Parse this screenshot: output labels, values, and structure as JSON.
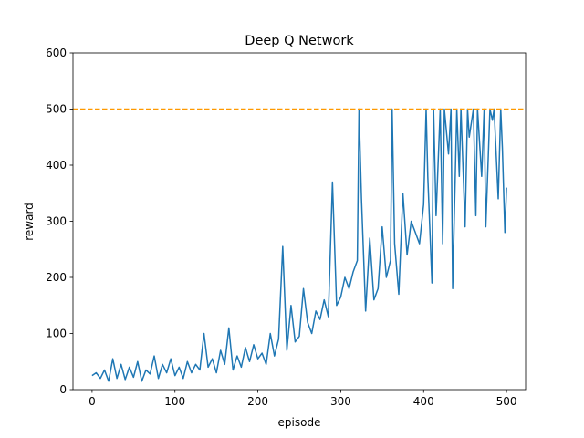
{
  "chart_data": {
    "type": "line",
    "title": "Deep Q Network",
    "xlabel": "episode",
    "ylabel": "reward",
    "xlim": [
      -23,
      523
    ],
    "ylim": [
      0,
      600
    ],
    "xticks": [
      0,
      100,
      200,
      300,
      400,
      500
    ],
    "yticks": [
      0,
      100,
      200,
      300,
      400,
      500,
      600
    ],
    "grid": false,
    "series": [
      {
        "color": "#1f77b4",
        "x": [
          0,
          5,
          10,
          15,
          20,
          25,
          30,
          35,
          40,
          45,
          50,
          55,
          60,
          65,
          70,
          75,
          80,
          85,
          90,
          95,
          100,
          105,
          110,
          115,
          120,
          125,
          130,
          135,
          140,
          145,
          150,
          155,
          160,
          165,
          170,
          175,
          180,
          185,
          190,
          195,
          200,
          205,
          210,
          215,
          220,
          225,
          230,
          235,
          240,
          245,
          250,
          255,
          260,
          265,
          270,
          275,
          280,
          285,
          290,
          295,
          300,
          305,
          310,
          315,
          320,
          322,
          325,
          330,
          335,
          340,
          345,
          350,
          355,
          360,
          362,
          365,
          370,
          375,
          380,
          385,
          390,
          395,
          400,
          403,
          405,
          410,
          412,
          415,
          420,
          423,
          425,
          430,
          433,
          435,
          440,
          443,
          445,
          450,
          453,
          455,
          460,
          463,
          465,
          470,
          473,
          475,
          480,
          483,
          485,
          490,
          493,
          495,
          498,
          500
        ],
        "y": [
          25,
          30,
          20,
          35,
          15,
          55,
          20,
          45,
          18,
          40,
          22,
          50,
          15,
          35,
          28,
          60,
          20,
          45,
          30,
          55,
          25,
          40,
          20,
          50,
          30,
          45,
          35,
          100,
          40,
          55,
          30,
          70,
          45,
          110,
          35,
          60,
          40,
          75,
          50,
          80,
          55,
          65,
          45,
          100,
          60,
          90,
          255,
          70,
          150,
          85,
          95,
          180,
          120,
          100,
          140,
          125,
          160,
          130,
          370,
          150,
          165,
          200,
          180,
          210,
          230,
          500,
          340,
          140,
          270,
          160,
          180,
          290,
          200,
          230,
          500,
          260,
          170,
          350,
          240,
          300,
          280,
          260,
          330,
          500,
          380,
          190,
          500,
          310,
          500,
          260,
          500,
          420,
          500,
          180,
          500,
          380,
          500,
          290,
          500,
          450,
          500,
          310,
          500,
          380,
          500,
          290,
          500,
          480,
          500,
          340,
          500,
          430,
          280,
          360
        ]
      },
      {
        "color": "#ff9900",
        "style": "dashed",
        "y_const": 500
      }
    ]
  }
}
